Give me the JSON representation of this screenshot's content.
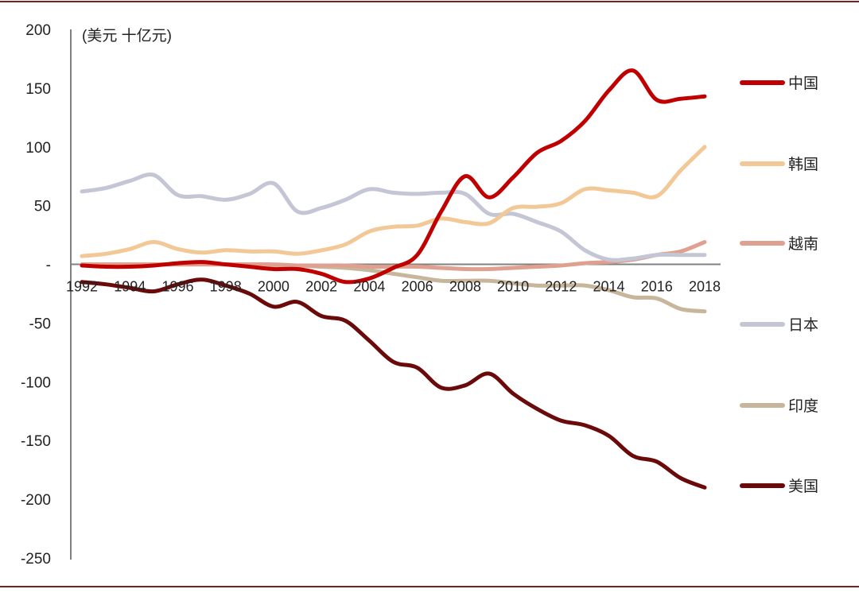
{
  "colors": {
    "frame": "#7a1f1f",
    "axis": "#808080",
    "text": "#222222",
    "zero_line": "#808080"
  },
  "chart_data": {
    "type": "line",
    "title": "",
    "unit_label": "(美元 十亿元)",
    "xlabel": "",
    "ylabel": "",
    "ylim": [
      -250,
      200
    ],
    "yticks": [
      200,
      150,
      100,
      50,
      0,
      -50,
      -100,
      -150,
      -200,
      -250
    ],
    "ytick_labels": [
      "200",
      "150",
      "100",
      "50",
      "-",
      "-50",
      "-100",
      "-150",
      "-200",
      "-250"
    ],
    "xlim": [
      1992,
      2018
    ],
    "xticks": [
      1992,
      1994,
      1996,
      1998,
      2000,
      2002,
      2004,
      2006,
      2008,
      2010,
      2012,
      2014,
      2016,
      2018
    ],
    "xtick_labels": [
      "1992",
      "1994",
      "1996",
      "1998",
      "2000",
      "2002",
      "2004",
      "2006",
      "2008",
      "2010",
      "2012",
      "2014",
      "2016",
      "2018"
    ],
    "x": [
      1992,
      1993,
      1994,
      1995,
      1996,
      1997,
      1998,
      1999,
      2000,
      2001,
      2002,
      2003,
      2004,
      2005,
      2006,
      2007,
      2008,
      2009,
      2010,
      2011,
      2012,
      2013,
      2014,
      2015,
      2016,
      2017,
      2018
    ],
    "legend_position": "right",
    "series": [
      {
        "name": "中国",
        "color": "#c00000",
        "values": [
          -1,
          -2,
          -2,
          -1,
          1,
          2,
          0,
          -2,
          -4,
          -4,
          -8,
          -15,
          -12,
          -3,
          8,
          45,
          75,
          57,
          74,
          95,
          105,
          122,
          148,
          165,
          140,
          141,
          143
        ]
      },
      {
        "name": "韩国",
        "color": "#f1c896",
        "values": [
          7,
          9,
          13,
          19,
          13,
          10,
          12,
          11,
          11,
          9,
          12,
          17,
          28,
          32,
          33,
          39,
          36,
          35,
          48,
          49,
          52,
          64,
          63,
          61,
          58,
          80,
          100
        ]
      },
      {
        "name": "越南",
        "color": "#e0a090",
        "values": [
          0,
          0,
          0,
          0,
          0,
          0,
          0,
          0,
          0,
          -1,
          -1,
          -1,
          -2,
          -2,
          -2,
          -3,
          -4,
          -4,
          -3,
          -2,
          -1,
          1,
          2,
          4,
          8,
          11,
          19
        ]
      },
      {
        "name": "日本",
        "color": "#c4c6d6",
        "values": [
          62,
          65,
          71,
          76,
          59,
          58,
          55,
          60,
          69,
          45,
          48,
          55,
          64,
          61,
          60,
          61,
          60,
          43,
          43,
          36,
          28,
          12,
          4,
          5,
          8,
          8,
          8
        ]
      },
      {
        "name": "印度",
        "color": "#c8b69c",
        "values": [
          0,
          0,
          0,
          0,
          0,
          0,
          0,
          0,
          -1,
          -1,
          -2,
          -3,
          -5,
          -8,
          -11,
          -14,
          -14,
          -14,
          -16,
          -18,
          -18,
          -18,
          -22,
          -28,
          -29,
          -38,
          -40
        ]
      },
      {
        "name": "美国",
        "color": "#6b0a0a",
        "values": [
          -15,
          -17,
          -20,
          -23,
          -17,
          -13,
          -18,
          -25,
          -36,
          -32,
          -44,
          -48,
          -65,
          -83,
          -88,
          -105,
          -103,
          -93,
          -110,
          -123,
          -133,
          -137,
          -146,
          -163,
          -168,
          -182,
          -190
        ]
      }
    ]
  }
}
